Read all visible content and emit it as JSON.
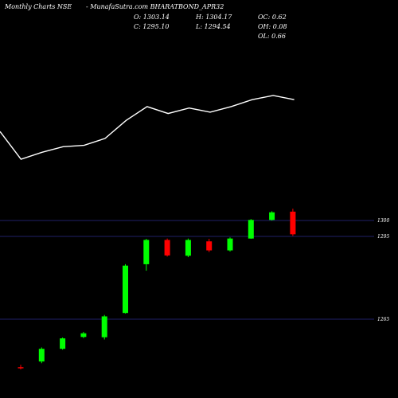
{
  "header": {
    "source": "Monthly Charts NSE",
    "symbol": "- MunafaSutra.com BHARATBOND_APR32",
    "open": "O: 1303.14",
    "high": "H: 1304.17",
    "oc": "OC: 0.62",
    "close": "C: 1295.10",
    "low": "L: 1294.54",
    "oh": "OH: 0.08",
    "ol": "OL: 0.66"
  },
  "colors": {
    "background": "#000000",
    "up": "#00ff00",
    "down": "#ff0000",
    "line": "#ffffff",
    "grid": "#2a2a8a"
  },
  "chart_data": [
    {
      "type": "line",
      "series": [
        {
          "values": [
            1198,
            1178,
            1183,
            1187,
            1188,
            1193,
            1206,
            1216,
            1211,
            1215,
            1212,
            1216,
            1221,
            1224,
            1221
          ]
        }
      ],
      "grid": false
    },
    {
      "type": "candlestick",
      "y_ticks": [
        {
          "value": 1300,
          "label": "1300"
        },
        {
          "value": 1295,
          "label": "1295"
        },
        {
          "value": 1265,
          "label": "1265"
        }
      ],
      "candles": [
        {
          "open": 1248.0,
          "high": 1248.8,
          "low": 1247.2,
          "close": 1247.6,
          "dir": "down"
        },
        {
          "open": 1250.0,
          "high": 1255.0,
          "low": 1249.4,
          "close": 1254.5,
          "dir": "up"
        },
        {
          "open": 1254.5,
          "high": 1258.5,
          "low": 1254.2,
          "close": 1258.2,
          "dir": "up"
        },
        {
          "open": 1258.7,
          "high": 1260.5,
          "low": 1258.3,
          "close": 1260.0,
          "dir": "up"
        },
        {
          "open": 1258.6,
          "high": 1266.5,
          "low": 1257.8,
          "close": 1266.0,
          "dir": "up"
        },
        {
          "open": 1267.2,
          "high": 1284.5,
          "low": 1267.0,
          "close": 1284.0,
          "dir": "up"
        },
        {
          "open": 1284.5,
          "high": 1293.5,
          "low": 1282.2,
          "close": 1293.1,
          "dir": "up"
        },
        {
          "open": 1293.1,
          "high": 1293.6,
          "low": 1287.2,
          "close": 1287.6,
          "dir": "down"
        },
        {
          "open": 1287.5,
          "high": 1293.6,
          "low": 1287.0,
          "close": 1293.1,
          "dir": "up"
        },
        {
          "open": 1292.6,
          "high": 1293.5,
          "low": 1288.8,
          "close": 1289.4,
          "dir": "down"
        },
        {
          "open": 1289.4,
          "high": 1294.0,
          "low": 1289.0,
          "close": 1293.6,
          "dir": "up"
        },
        {
          "open": 1293.6,
          "high": 1300.5,
          "low": 1293.5,
          "close": 1300.2,
          "dir": "up"
        },
        {
          "open": 1300.2,
          "high": 1303.3,
          "low": 1300.0,
          "close": 1302.9,
          "dir": "up"
        },
        {
          "open": 1303.14,
          "high": 1304.17,
          "low": 1294.54,
          "close": 1295.1,
          "dir": "down"
        }
      ]
    }
  ]
}
